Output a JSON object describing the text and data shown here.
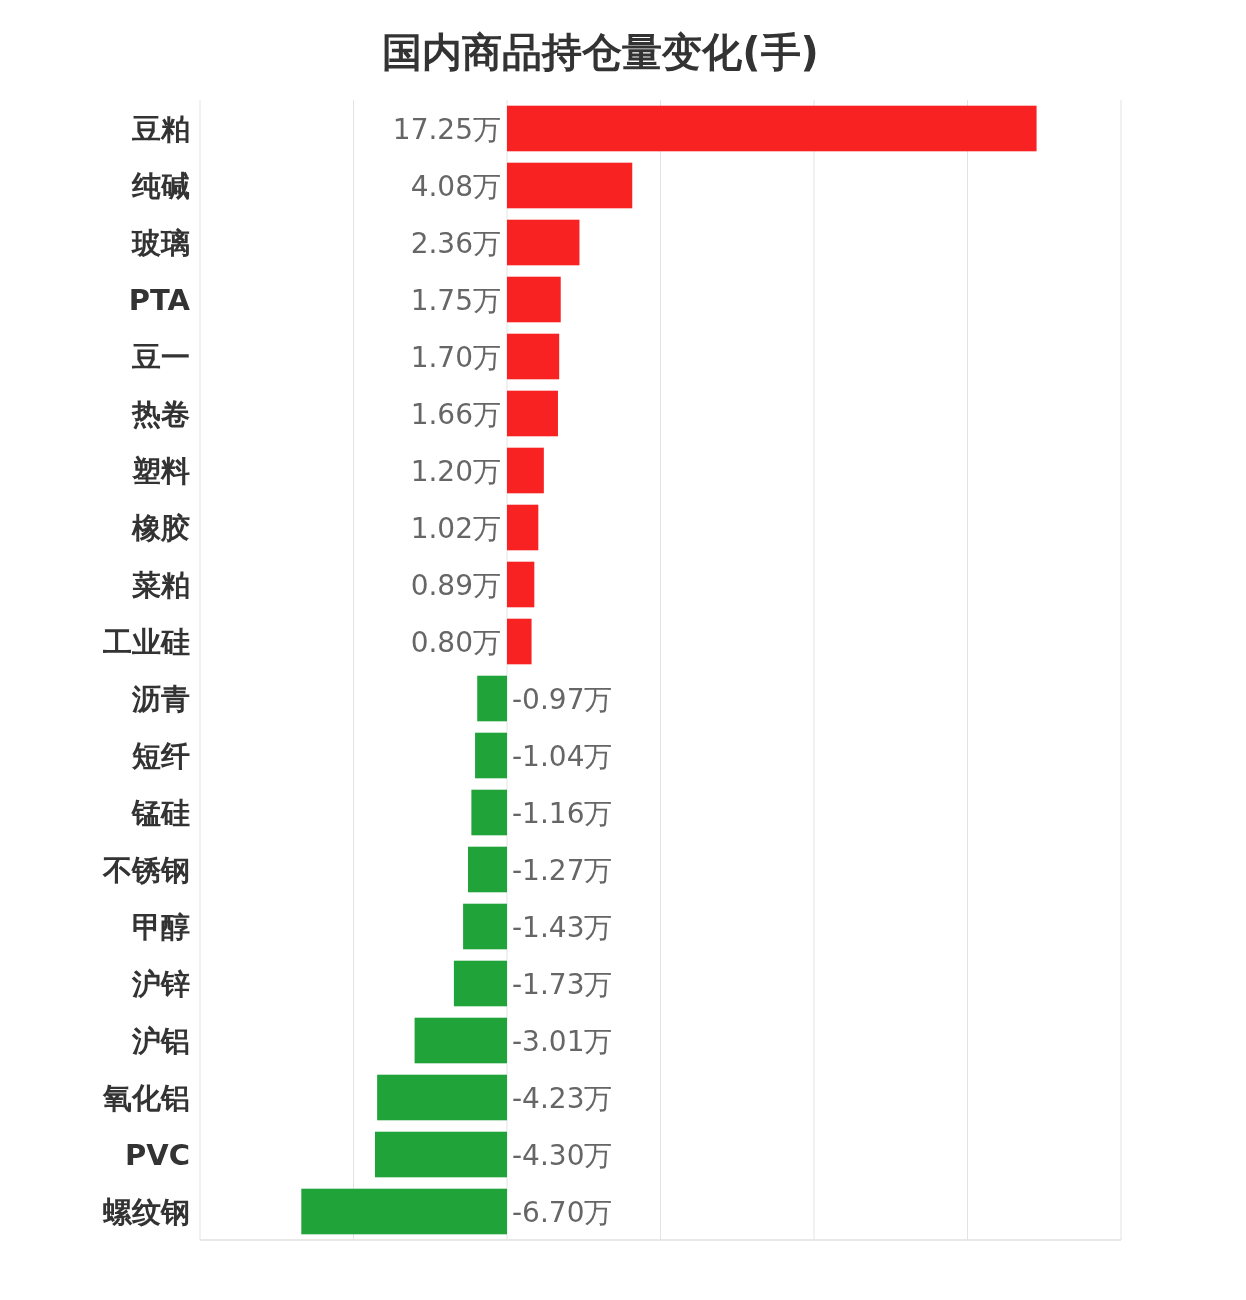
{
  "chart_data": {
    "type": "bar",
    "orientation": "horizontal",
    "title": "国内商品持仓量变化(手)",
    "categories": [
      "豆粕",
      "纯碱",
      "玻璃",
      "PTA",
      "豆一",
      "热卷",
      "塑料",
      "橡胶",
      "菜粕",
      "工业硅",
      "沥青",
      "短纤",
      "锰硅",
      "不锈钢",
      "甲醇",
      "沪锌",
      "沪铝",
      "氧化铝",
      "PVC",
      "螺纹钢"
    ],
    "values": [
      17.25,
      4.08,
      2.36,
      1.75,
      1.7,
      1.66,
      1.2,
      1.02,
      0.89,
      0.8,
      -0.97,
      -1.04,
      -1.16,
      -1.27,
      -1.43,
      -1.73,
      -3.01,
      -4.23,
      -4.3,
      -6.7
    ],
    "colors": [
      "#f82222",
      "#f82222",
      "#f82222",
      "#f82222",
      "#f82222",
      "#f82222",
      "#f82222",
      "#f82222",
      "#f82222",
      "#f82222",
      "#20a339",
      "#20a339",
      "#20a339",
      "#20a339",
      "#20a339",
      "#20a339",
      "#20a339",
      "#20a339",
      "#20a339",
      "#20a339"
    ],
    "value_labels": [
      "17.25万",
      "4.08万",
      "2.36万",
      "1.75万",
      "1.70万",
      "1.66万",
      "1.20万",
      "1.02万",
      "0.89万",
      "0.80万",
      "-0.97万",
      "-1.04万",
      "-1.16万",
      "-1.27万",
      "-1.43万",
      "-1.73万",
      "-3.01万",
      "-4.23万",
      "-4.30万",
      "-6.70万"
    ],
    "xlim": [
      -10,
      20
    ],
    "xticks": [
      {
        "value": -10,
        "label": null
      },
      {
        "value": -5,
        "label": null
      },
      {
        "value": 0,
        "label": null
      },
      {
        "value": 5,
        "label": null
      },
      {
        "value": 10,
        "label": null
      },
      {
        "value": 15,
        "label": null
      },
      {
        "value": 20,
        "label": null
      }
    ],
    "grid": "x",
    "tick_labels": "y"
  }
}
